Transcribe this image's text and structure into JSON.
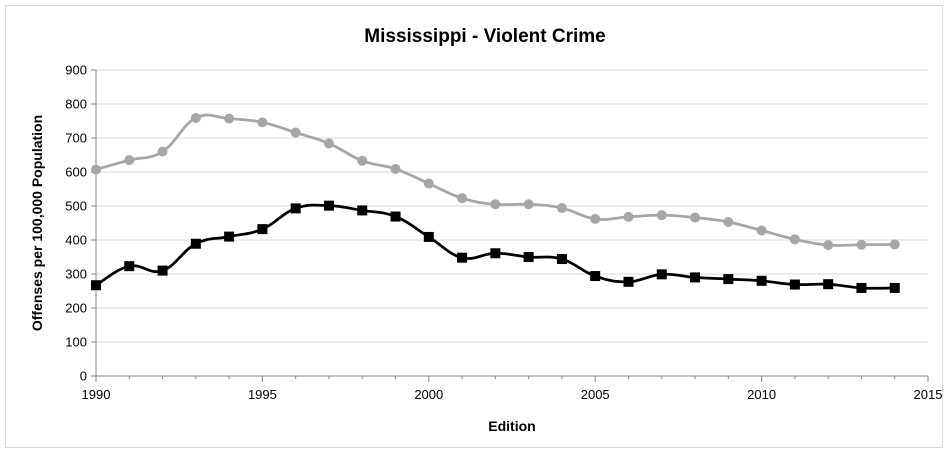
{
  "chart_data": {
    "type": "line",
    "title": "Mississippi - Violent Crime",
    "xlabel": "Edition",
    "ylabel": "Offenses per 100,000 Population",
    "xlim": [
      1990,
      2015
    ],
    "ylim": [
      0,
      900
    ],
    "xticks": [
      1990,
      1995,
      2000,
      2005,
      2010,
      2015
    ],
    "yticks": [
      0,
      100,
      200,
      300,
      400,
      500,
      600,
      700,
      800,
      900
    ],
    "grid": true,
    "legend": "none",
    "series": [
      {
        "color": "#a6a6a6",
        "marker": "circle",
        "x": [
          1990,
          1991,
          1992,
          1993,
          1994,
          1995,
          1996,
          1997,
          1998,
          1999,
          2000,
          2001,
          2002,
          2003,
          2004,
          2005,
          2006,
          2007,
          2008,
          2009,
          2010,
          2011,
          2012,
          2013,
          2014
        ],
        "values": [
          607,
          635,
          660,
          759,
          757,
          746,
          716,
          684,
          633,
          609,
          566,
          523,
          505,
          505,
          494,
          462,
          468,
          473,
          466,
          453,
          428,
          402,
          385,
          386,
          387
        ]
      },
      {
        "color": "#000000",
        "marker": "square",
        "x": [
          1990,
          1991,
          1992,
          1993,
          1994,
          1995,
          1996,
          1997,
          1998,
          1999,
          2000,
          2001,
          2002,
          2003,
          2004,
          2005,
          2006,
          2007,
          2008,
          2009,
          2010,
          2011,
          2012,
          2013,
          2014
        ],
        "values": [
          267,
          323,
          310,
          389,
          410,
          432,
          493,
          501,
          487,
          469,
          409,
          348,
          361,
          350,
          344,
          294,
          277,
          299,
          290,
          285,
          280,
          269,
          270,
          259,
          259
        ]
      }
    ]
  }
}
